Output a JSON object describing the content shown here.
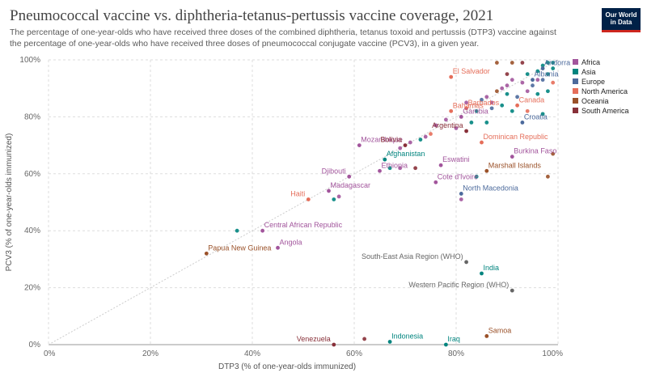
{
  "header": {
    "title": "Pneumococcal vaccine vs. diphtheria-tetanus-pertussis vaccine coverage, 2021",
    "subtitle": "The percentage of one-year-olds who have received three doses of the combined diphtheria, tetanus toxoid and pertussis (DTP3) vaccine against the percentage of one-year-olds who have received three doses of pneumococcal conjugate vaccine (PCV3), in a given year.",
    "logo_line1": "Our World",
    "logo_line2": "in Data"
  },
  "chart_data": {
    "type": "scatter",
    "title": "Pneumococcal vaccine vs. diphtheria-tetanus-pertussis vaccine coverage, 2021",
    "xlabel": "DTP3 (% of one-year-olds immunized)",
    "ylabel": "PCV3 (% of one-year-olds immunized)",
    "xlim": [
      0,
      100
    ],
    "ylim": [
      0,
      100
    ],
    "x_ticks": [
      "0%",
      "20%",
      "40%",
      "60%",
      "80%",
      "100%"
    ],
    "y_ticks": [
      "0%",
      "20%",
      "40%",
      "60%",
      "80%",
      "100%"
    ],
    "grid": true,
    "legend_placement": "top-right",
    "legend": [
      {
        "name": "Africa",
        "color": "#a2559c"
      },
      {
        "name": "Asia",
        "color": "#00847e"
      },
      {
        "name": "Europe",
        "color": "#4c6a9c"
      },
      {
        "name": "North America",
        "color": "#e56e5a"
      },
      {
        "name": "Oceania",
        "color": "#9a5129"
      },
      {
        "name": "South America",
        "color": "#883039"
      }
    ],
    "labeled_points": [
      {
        "label": "El Salvador",
        "x": 79,
        "y": 94,
        "region": "North America"
      },
      {
        "label": "Andorra",
        "x": 97,
        "y": 97,
        "region": "Europe"
      },
      {
        "label": "Albania",
        "x": 95,
        "y": 93,
        "region": "Europe"
      },
      {
        "label": "Canada",
        "x": 92,
        "y": 84,
        "region": "North America"
      },
      {
        "label": "Bahamas",
        "x": 79,
        "y": 82,
        "region": "North America"
      },
      {
        "label": "Barbados",
        "x": 82,
        "y": 83,
        "region": "North America"
      },
      {
        "label": "Gambia",
        "x": 81,
        "y": 80,
        "region": "Africa"
      },
      {
        "label": "Croatia",
        "x": 93,
        "y": 78,
        "region": "Europe"
      },
      {
        "label": "Argentina",
        "x": 82,
        "y": 75,
        "region": "South America"
      },
      {
        "label": "Dominican Republic",
        "x": 85,
        "y": 71,
        "region": "North America"
      },
      {
        "label": "Mozambique",
        "x": 61,
        "y": 70,
        "region": "Africa"
      },
      {
        "label": "Bolivia",
        "x": 70,
        "y": 70,
        "region": "South America"
      },
      {
        "label": "Afghanistan",
        "x": 66,
        "y": 65,
        "region": "Asia"
      },
      {
        "label": "Burkina Faso",
        "x": 91,
        "y": 66,
        "region": "Africa"
      },
      {
        "label": "Eswatini",
        "x": 77,
        "y": 63,
        "region": "Africa"
      },
      {
        "label": "Ethiopia",
        "x": 65,
        "y": 61,
        "region": "Africa"
      },
      {
        "label": "Djibouti",
        "x": 59,
        "y": 59,
        "region": "Africa"
      },
      {
        "label": "Marshall Islands",
        "x": 86,
        "y": 61,
        "region": "Oceania"
      },
      {
        "label": "Cote d'Ivoire",
        "x": 76,
        "y": 57,
        "region": "Africa"
      },
      {
        "label": "Madagascar",
        "x": 55,
        "y": 54,
        "region": "Africa"
      },
      {
        "label": "North Macedonia",
        "x": 81,
        "y": 53,
        "region": "Europe"
      },
      {
        "label": "Haiti",
        "x": 51,
        "y": 51,
        "region": "North America"
      },
      {
        "label": "Central African Republic",
        "x": 42,
        "y": 40,
        "region": "Africa"
      },
      {
        "label": "Angola",
        "x": 45,
        "y": 34,
        "region": "Africa"
      },
      {
        "label": "Papua New Guinea",
        "x": 31,
        "y": 32,
        "region": "Oceania"
      },
      {
        "label": "South-East Asia Region (WHO)",
        "x": 82,
        "y": 29,
        "region": "Other"
      },
      {
        "label": "India",
        "x": 85,
        "y": 25,
        "region": "Asia"
      },
      {
        "label": "Western Pacific Region (WHO)",
        "x": 91,
        "y": 19,
        "region": "Other"
      },
      {
        "label": "Samoa",
        "x": 86,
        "y": 3,
        "region": "Oceania"
      },
      {
        "label": "Venezuela",
        "x": 56,
        "y": 0,
        "region": "South America"
      },
      {
        "label": "Indonesia",
        "x": 67,
        "y": 1,
        "region": "Asia"
      },
      {
        "label": "Iraq",
        "x": 78,
        "y": 0,
        "region": "Asia"
      }
    ],
    "other_points": [
      {
        "x": 98,
        "y": 99,
        "region": "Asia"
      },
      {
        "x": 99,
        "y": 99,
        "region": "Asia"
      },
      {
        "x": 97,
        "y": 98,
        "region": "Asia"
      },
      {
        "x": 99,
        "y": 97,
        "region": "Asia"
      },
      {
        "x": 96,
        "y": 96,
        "region": "Asia"
      },
      {
        "x": 94,
        "y": 95,
        "region": "Asia"
      },
      {
        "x": 93,
        "y": 99,
        "region": "South America"
      },
      {
        "x": 91,
        "y": 99,
        "region": "Oceania"
      },
      {
        "x": 90,
        "y": 95,
        "region": "South America"
      },
      {
        "x": 91,
        "y": 93,
        "region": "Africa"
      },
      {
        "x": 93,
        "y": 92,
        "region": "Africa"
      },
      {
        "x": 95,
        "y": 91,
        "region": "Europe"
      },
      {
        "x": 97,
        "y": 93,
        "region": "Europe"
      },
      {
        "x": 99,
        "y": 92,
        "region": "North America"
      },
      {
        "x": 89,
        "y": 90,
        "region": "Africa"
      },
      {
        "x": 88,
        "y": 89,
        "region": "Oceania"
      },
      {
        "x": 90,
        "y": 88,
        "region": "Asia"
      },
      {
        "x": 92,
        "y": 87,
        "region": "Europe"
      },
      {
        "x": 94,
        "y": 89,
        "region": "Africa"
      },
      {
        "x": 96,
        "y": 88,
        "region": "Asia"
      },
      {
        "x": 98,
        "y": 89,
        "region": "Asia"
      },
      {
        "x": 86,
        "y": 87,
        "region": "Africa"
      },
      {
        "x": 87,
        "y": 85,
        "region": "Africa"
      },
      {
        "x": 85,
        "y": 86,
        "region": "Europe"
      },
      {
        "x": 89,
        "y": 84,
        "region": "Asia"
      },
      {
        "x": 91,
        "y": 82,
        "region": "Asia"
      },
      {
        "x": 94,
        "y": 82,
        "region": "North America"
      },
      {
        "x": 97,
        "y": 81,
        "region": "Asia"
      },
      {
        "x": 84,
        "y": 82,
        "region": "Asia"
      },
      {
        "x": 86,
        "y": 78,
        "region": "Asia"
      },
      {
        "x": 83,
        "y": 78,
        "region": "Asia"
      },
      {
        "x": 78,
        "y": 79,
        "region": "Africa"
      },
      {
        "x": 76,
        "y": 77,
        "region": "Africa"
      },
      {
        "x": 75,
        "y": 74,
        "region": "North America"
      },
      {
        "x": 74,
        "y": 73,
        "region": "Africa"
      },
      {
        "x": 73,
        "y": 72,
        "region": "Asia"
      },
      {
        "x": 69,
        "y": 69,
        "region": "Africa"
      },
      {
        "x": 72,
        "y": 62,
        "region": "South America"
      },
      {
        "x": 69,
        "y": 62,
        "region": "Africa"
      },
      {
        "x": 71,
        "y": 71,
        "region": "Africa"
      },
      {
        "x": 67,
        "y": 62,
        "region": "Asia"
      },
      {
        "x": 82,
        "y": 85,
        "region": "Africa"
      },
      {
        "x": 80,
        "y": 76,
        "region": "Africa"
      },
      {
        "x": 88,
        "y": 99,
        "region": "Oceania"
      },
      {
        "x": 90,
        "y": 91,
        "region": "Africa"
      },
      {
        "x": 87,
        "y": 83,
        "region": "Europe"
      },
      {
        "x": 81,
        "y": 51,
        "region": "Africa"
      },
      {
        "x": 84,
        "y": 59,
        "region": "Asia"
      },
      {
        "x": 37,
        "y": 40,
        "region": "Asia"
      },
      {
        "x": 56,
        "y": 51,
        "region": "Asia"
      },
      {
        "x": 57,
        "y": 52,
        "region": "Africa"
      },
      {
        "x": 99,
        "y": 67,
        "region": "Oceania"
      },
      {
        "x": 98,
        "y": 59,
        "region": "Oceania"
      },
      {
        "x": 62,
        "y": 2,
        "region": "South America"
      },
      {
        "x": 98,
        "y": 95,
        "region": "Asia"
      },
      {
        "x": 96,
        "y": 93,
        "region": "Africa"
      }
    ]
  }
}
